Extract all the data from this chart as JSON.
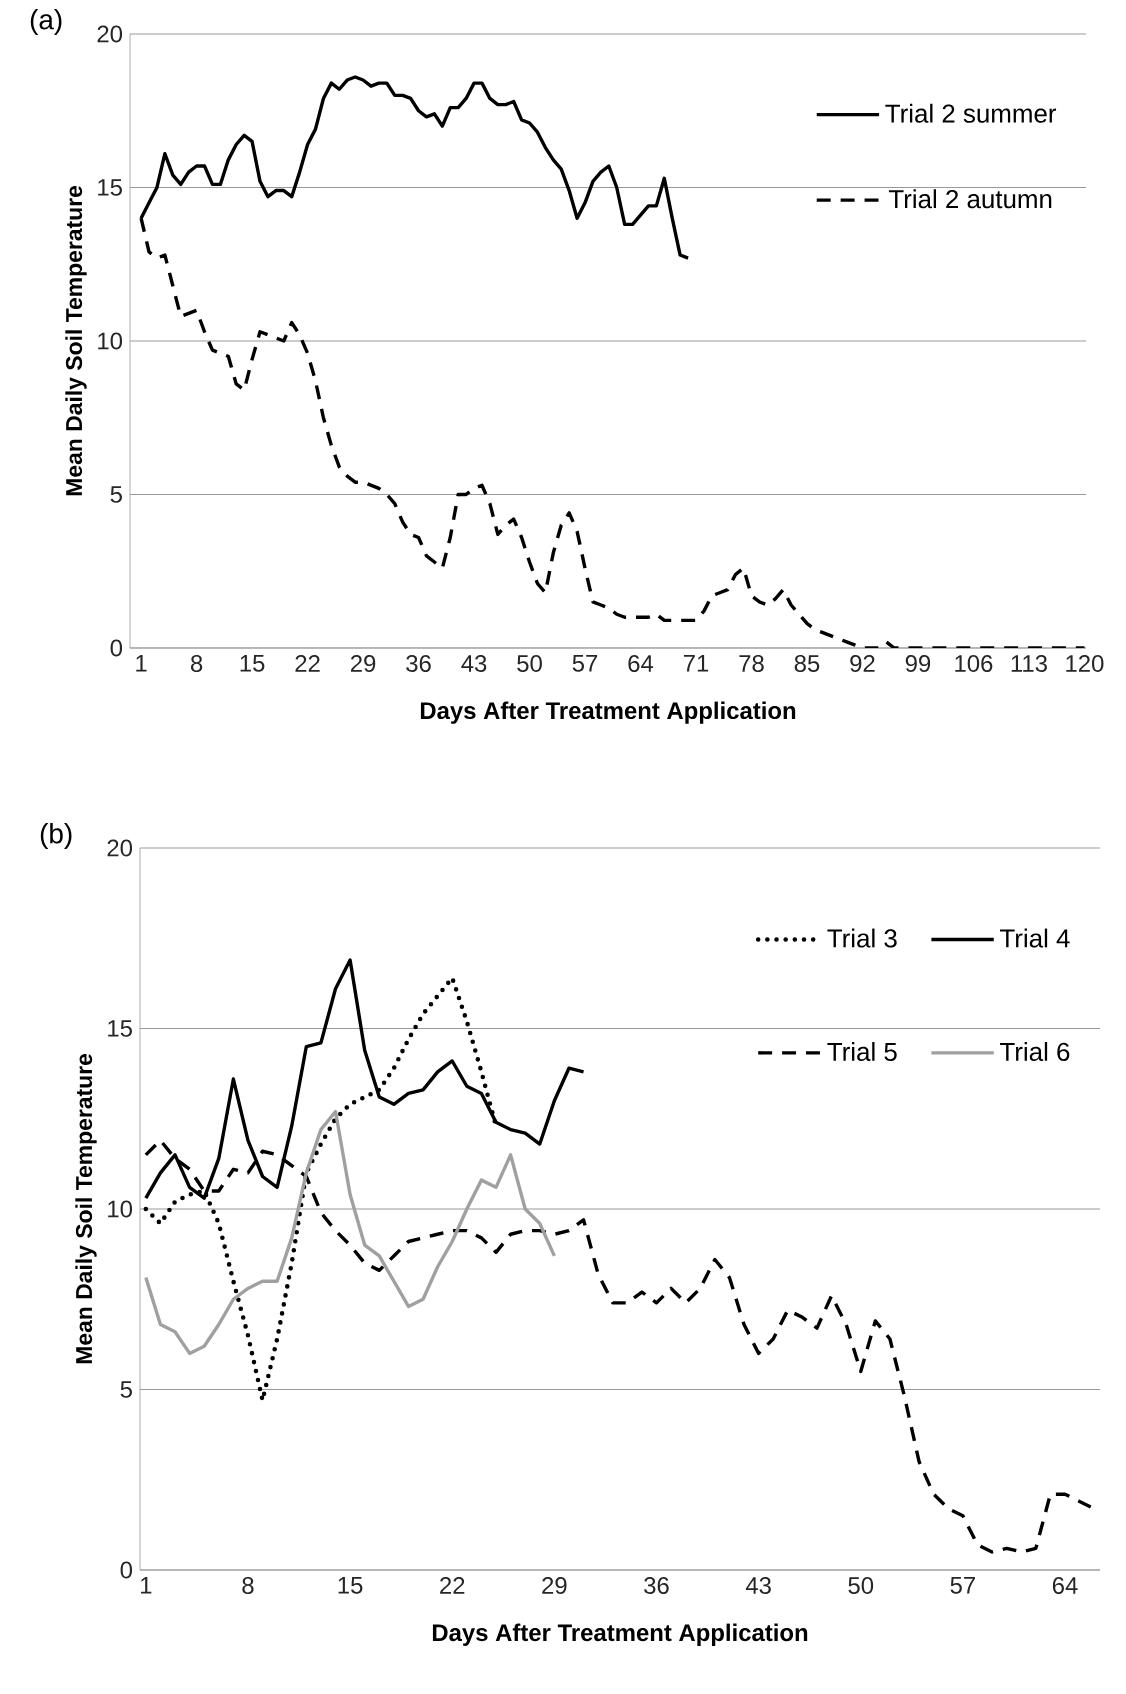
{
  "chart_data": [
    {
      "type": "line",
      "title": "(a)",
      "xlabel": "Days After Treatment Application",
      "ylabel": "Mean Daily Soil Temperature",
      "xlim": [
        -0.4,
        120.2
      ],
      "ylim": [
        0,
        20
      ],
      "xticks": [
        1,
        8,
        15,
        22,
        29,
        36,
        43,
        50,
        57,
        64,
        71,
        78,
        85,
        92,
        99,
        106,
        113,
        120
      ],
      "yticks": [
        0,
        5,
        10,
        15,
        20
      ],
      "grid": "y",
      "legend": "top right",
      "series": [
        {
          "name": "Trial 2 summer",
          "color": "#000000",
          "line_style": "solid",
          "x": [
            1,
            2,
            3,
            4,
            5,
            6,
            7,
            8,
            9,
            10,
            11,
            12,
            13,
            14,
            15,
            16,
            17,
            18,
            19,
            20,
            21,
            22,
            23,
            24,
            25,
            26,
            27,
            28,
            29,
            30,
            31,
            32,
            33,
            34,
            35,
            36,
            37,
            38,
            39,
            40,
            41,
            42,
            43,
            44,
            45,
            46,
            47,
            48,
            49,
            50,
            51,
            52,
            53,
            54,
            55,
            56,
            57,
            58,
            59,
            60,
            61,
            62,
            63,
            64,
            65,
            66,
            67,
            68,
            69,
            70
          ],
          "values": [
            14.0,
            14.5,
            15.0,
            16.1,
            15.4,
            15.1,
            15.5,
            15.7,
            15.7,
            15.1,
            15.1,
            15.9,
            16.4,
            16.7,
            16.5,
            15.2,
            14.7,
            14.9,
            14.9,
            14.7,
            15.5,
            16.4,
            16.9,
            17.9,
            18.4,
            18.2,
            18.5,
            18.6,
            18.5,
            18.3,
            18.4,
            18.4,
            18.0,
            18.0,
            17.9,
            17.5,
            17.3,
            17.4,
            17.0,
            17.6,
            17.6,
            17.9,
            18.4,
            18.4,
            17.9,
            17.7,
            17.7,
            17.8,
            17.2,
            17.1,
            16.8,
            16.3,
            15.9,
            15.6,
            14.9,
            14.0,
            14.5,
            15.2,
            15.5,
            15.7,
            15.0,
            13.8,
            13.8,
            14.1,
            14.4,
            14.4,
            15.3,
            14.0,
            12.8,
            12.7
          ]
        },
        {
          "name": "Trial 2 autumn",
          "color": "#000000",
          "line_style": "dashed",
          "x": [
            1,
            2,
            3,
            4,
            5,
            6,
            7,
            8,
            9,
            10,
            11,
            12,
            13,
            14,
            15,
            16,
            17,
            18,
            19,
            20,
            21,
            22,
            23,
            24,
            25,
            26,
            27,
            28,
            29,
            30,
            31,
            32,
            33,
            34,
            35,
            36,
            37,
            38,
            39,
            40,
            41,
            42,
            43,
            44,
            45,
            46,
            47,
            48,
            49,
            50,
            51,
            52,
            53,
            54,
            55,
            56,
            57,
            58,
            59,
            60,
            61,
            62,
            63,
            64,
            65,
            66,
            67,
            68,
            69,
            70,
            71,
            72,
            73,
            74,
            75,
            76,
            77,
            78,
            79,
            80,
            81,
            82,
            83,
            84,
            85,
            86,
            87,
            88,
            89,
            90,
            91,
            92,
            93,
            94,
            95,
            96,
            120
          ],
          "values": [
            14.0,
            12.9,
            12.7,
            12.8,
            11.8,
            10.8,
            10.9,
            11.0,
            10.3,
            9.7,
            9.6,
            9.5,
            8.6,
            8.4,
            9.4,
            10.3,
            10.2,
            10.1,
            10.0,
            10.6,
            10.2,
            9.6,
            8.7,
            7.5,
            6.6,
            5.9,
            5.6,
            5.4,
            5.4,
            5.3,
            5.2,
            5.0,
            4.7,
            4.1,
            3.7,
            3.6,
            3.0,
            2.8,
            2.6,
            3.6,
            5.0,
            5.0,
            5.2,
            5.3,
            4.7,
            3.7,
            4.0,
            4.2,
            3.6,
            2.8,
            2.1,
            1.8,
            3.1,
            4.0,
            4.4,
            3.8,
            2.6,
            1.5,
            1.4,
            1.3,
            1.1,
            1.0,
            1.0,
            1.0,
            1.0,
            1.1,
            0.9,
            0.9,
            0.9,
            0.9,
            0.9,
            1.2,
            1.7,
            1.8,
            1.9,
            2.4,
            2.6,
            1.7,
            1.5,
            1.4,
            1.6,
            1.9,
            1.4,
            1.1,
            0.8,
            0.6,
            0.5,
            0.4,
            0.3,
            0.2,
            0.1,
            0,
            0,
            0,
            0.2,
            0,
            0
          ]
        }
      ]
    },
    {
      "type": "line",
      "title": "(b)",
      "xlabel": "Days After Treatment Application",
      "ylabel": "Mean Daily Soil Temperature",
      "xlim": [
        0.6,
        66.4
      ],
      "ylim": [
        0,
        20
      ],
      "xticks": [
        1,
        8,
        15,
        22,
        29,
        36,
        43,
        50,
        57,
        64
      ],
      "yticks": [
        0,
        5,
        10,
        15,
        20
      ],
      "grid": "y",
      "legend": "top right",
      "series": [
        {
          "name": "Trial 3",
          "color": "#000000",
          "line_style": "dotted",
          "x": [
            1,
            2,
            3,
            4,
            5,
            6,
            7,
            8,
            9,
            10,
            11,
            12,
            13,
            14,
            15,
            16,
            17,
            18,
            19,
            20,
            21,
            22,
            23,
            24,
            25
          ],
          "values": [
            10.0,
            9.6,
            10.2,
            10.4,
            10.5,
            9.6,
            8.0,
            6.5,
            4.7,
            6.4,
            8.5,
            11.0,
            11.8,
            12.5,
            12.9,
            13.1,
            13.3,
            13.9,
            14.7,
            15.4,
            15.9,
            16.4,
            15.2,
            13.8,
            12.3
          ]
        },
        {
          "name": "Trial 4",
          "color": "#000000",
          "line_style": "solid",
          "x": [
            1,
            2,
            3,
            4,
            5,
            6,
            7,
            8,
            9,
            10,
            11,
            12,
            13,
            14,
            15,
            16,
            17,
            18,
            19,
            20,
            21,
            22,
            23,
            24,
            25,
            26,
            27,
            28,
            29,
            30,
            31
          ],
          "values": [
            10.3,
            11.0,
            11.5,
            10.6,
            10.3,
            11.4,
            13.6,
            11.9,
            10.9,
            10.6,
            12.3,
            14.5,
            14.6,
            16.1,
            16.9,
            14.4,
            13.1,
            12.9,
            13.2,
            13.3,
            13.8,
            14.1,
            13.4,
            13.2,
            12.4,
            12.2,
            12.1,
            11.8,
            13.0,
            13.9,
            13.8
          ]
        },
        {
          "name": "Trial 5",
          "color": "#000000",
          "line_style": "dashed",
          "x": [
            1,
            2,
            3,
            4,
            5,
            6,
            7,
            8,
            9,
            10,
            11,
            12,
            13,
            14,
            15,
            16,
            17,
            18,
            19,
            20,
            21,
            22,
            23,
            24,
            25,
            26,
            27,
            28,
            29,
            30,
            31,
            32,
            33,
            34,
            35,
            36,
            37,
            38,
            39,
            40,
            41,
            42,
            43,
            44,
            45,
            46,
            47,
            48,
            49,
            50,
            51,
            52,
            53,
            54,
            55,
            56,
            57,
            58,
            59,
            60,
            61,
            62,
            63,
            64,
            65,
            66
          ],
          "values": [
            11.5,
            11.9,
            11.4,
            11.1,
            10.5,
            10.5,
            11.1,
            11.0,
            11.6,
            11.5,
            11.2,
            10.9,
            9.9,
            9.4,
            9.0,
            8.5,
            8.3,
            8.7,
            9.1,
            9.2,
            9.3,
            9.4,
            9.4,
            9.2,
            8.8,
            9.3,
            9.4,
            9.4,
            9.3,
            9.4,
            9.7,
            8.2,
            7.4,
            7.4,
            7.7,
            7.4,
            7.8,
            7.4,
            7.8,
            8.6,
            8.1,
            6.8,
            6.0,
            6.4,
            7.2,
            7.0,
            6.7,
            7.6,
            6.8,
            5.5,
            6.9,
            6.4,
            4.8,
            3.0,
            2.1,
            1.7,
            1.5,
            0.7,
            0.5,
            0.6,
            0.5,
            0.6,
            2.1,
            2.1,
            1.9,
            1.7
          ]
        },
        {
          "name": "Trial 6",
          "color": "#a0a0a0",
          "line_style": "solid",
          "x": [
            1,
            2,
            3,
            4,
            5,
            6,
            7,
            8,
            9,
            10,
            11,
            12,
            13,
            14,
            15,
            16,
            17,
            18,
            19,
            20,
            21,
            22,
            23,
            24,
            25,
            26,
            27,
            28,
            29
          ],
          "values": [
            8.1,
            6.8,
            6.6,
            6.0,
            6.2,
            6.8,
            7.5,
            7.8,
            8.0,
            8.0,
            9.2,
            11.0,
            12.2,
            12.7,
            10.4,
            9.0,
            8.7,
            8.0,
            7.3,
            7.5,
            8.4,
            9.1,
            10.0,
            10.8,
            10.6,
            11.5,
            10.0,
            9.6,
            8.7
          ]
        }
      ]
    }
  ]
}
